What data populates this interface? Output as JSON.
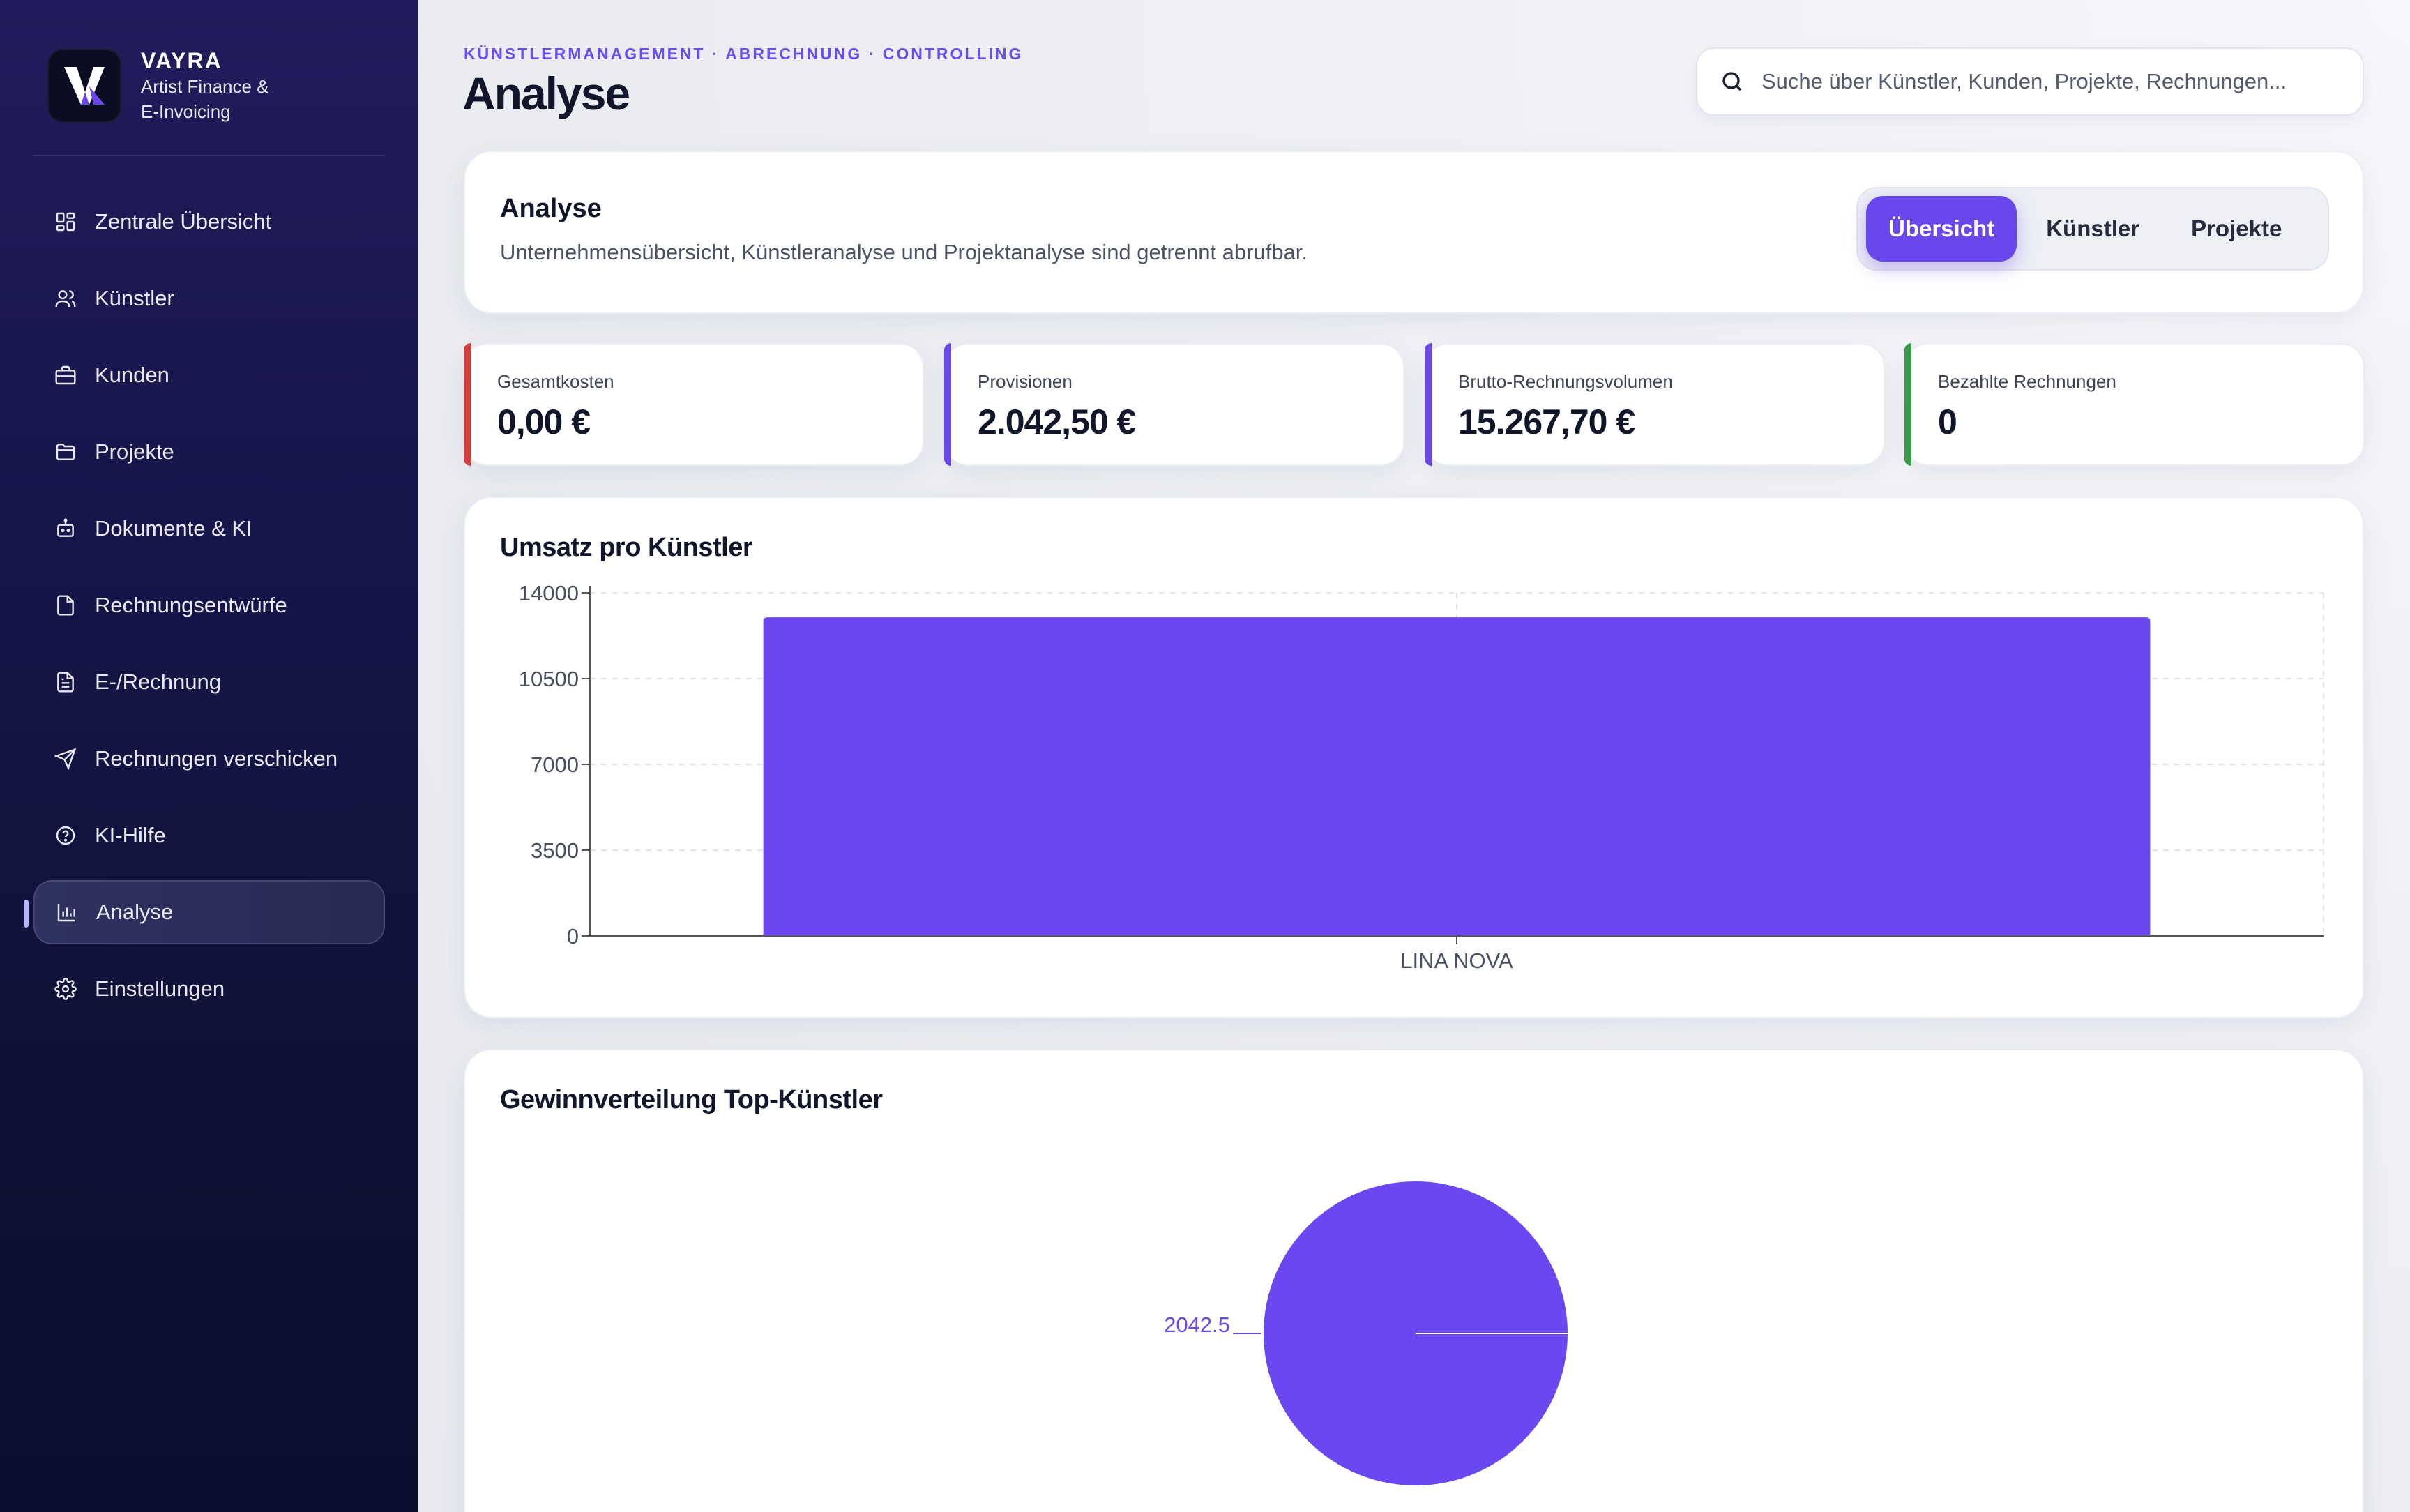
{
  "brand": {
    "name": "VAYRA",
    "subtitle_line1": "Artist Finance &",
    "subtitle_line2": "E-Invoicing"
  },
  "nav": {
    "items": [
      {
        "id": "overview",
        "label": "Zentrale Übersicht",
        "icon": "grid-icon"
      },
      {
        "id": "artists",
        "label": "Künstler",
        "icon": "users-icon"
      },
      {
        "id": "clients",
        "label": "Kunden",
        "icon": "briefcase-icon"
      },
      {
        "id": "projects",
        "label": "Projekte",
        "icon": "folder-icon"
      },
      {
        "id": "documents",
        "label": "Dokumente & KI",
        "icon": "robot-icon"
      },
      {
        "id": "drafts",
        "label": "Rechnungsentwürfe",
        "icon": "file-icon"
      },
      {
        "id": "einvoice",
        "label": "E-/Rechnung",
        "icon": "file-text-icon"
      },
      {
        "id": "send",
        "label": "Rechnungen verschicken",
        "icon": "send-icon"
      },
      {
        "id": "help",
        "label": "KI-Hilfe",
        "icon": "help-circle-icon"
      },
      {
        "id": "analysis",
        "label": "Analyse",
        "icon": "bar-chart-icon",
        "active": true
      },
      {
        "id": "settings",
        "label": "Einstellungen",
        "icon": "gear-icon"
      }
    ]
  },
  "header": {
    "eyebrow": "KÜNSTLERMANAGEMENT · ABRECHNUNG · CONTROLLING",
    "title": "Analyse",
    "search_placeholder": "Suche über Künstler, Kunden, Projekte, Rechnungen..."
  },
  "analysis_card": {
    "title": "Analyse",
    "subtitle": "Unternehmensübersicht, Künstleranalyse und Projektanalyse sind getrennt abrufbar.",
    "tabs": [
      {
        "label": "Übersicht",
        "active": true
      },
      {
        "label": "Künstler",
        "active": false
      },
      {
        "label": "Projekte",
        "active": false
      }
    ]
  },
  "kpis": [
    {
      "label": "Gesamtkosten",
      "value": "0,00 €",
      "accent": "#d43c3c"
    },
    {
      "label": "Provisionen",
      "value": "2.042,50 €",
      "accent": "#6a47ea"
    },
    {
      "label": "Brutto-Rechnungsvolumen",
      "value": "15.267,70 €",
      "accent": "#6a47ea"
    },
    {
      "label": "Bezahlte Rechnungen",
      "value": "0",
      "accent": "#3a9a4a"
    }
  ],
  "chart_data": [
    {
      "type": "bar",
      "title": "Umsatz pro Künstler",
      "categories": [
        "LINA NOVA"
      ],
      "values": [
        13000
      ],
      "ylim": [
        0,
        14000
      ],
      "yticks": [
        "0",
        "3500",
        "7000",
        "10500",
        "14000"
      ],
      "grid": true,
      "color": "#6a47f0"
    },
    {
      "type": "pie",
      "title": "Gewinnverteilung Top-Künstler",
      "slices": [
        {
          "value": 2042.5,
          "label": "2042.5"
        }
      ],
      "color": "#6a47f0"
    }
  ]
}
